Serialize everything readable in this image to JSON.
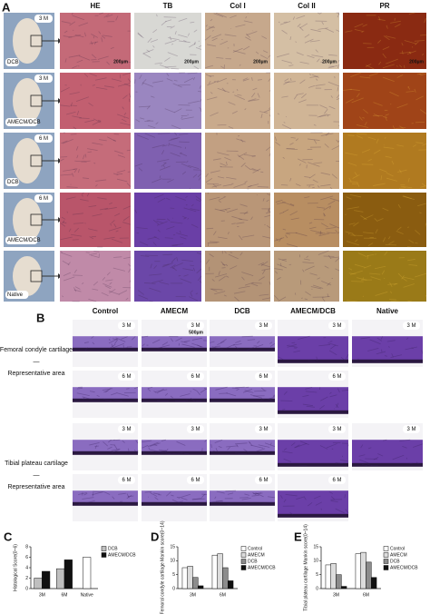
{
  "panel_a": {
    "label": "A",
    "columns": [
      "HE",
      "TB",
      "Col I",
      "Col II",
      "PR"
    ],
    "rows": [
      {
        "time": "3 M",
        "group": "DCB"
      },
      {
        "time": "3 M",
        "group": "AMECM/DCB"
      },
      {
        "time": "6 M",
        "group": "DCB"
      },
      {
        "time": "6 M",
        "group": "AMECM/DCB"
      },
      {
        "group": "Native"
      }
    ],
    "scale_bar": "200μm"
  },
  "panel_b": {
    "label": "B",
    "columns": [
      "Control",
      "AMECM",
      "DCB",
      "AMECM/DCB",
      "Native"
    ],
    "rows": [
      {
        "tag": "3 M"
      },
      {
        "tag": "6 M"
      },
      {
        "tag": "3 M"
      },
      {
        "tag": "6 M"
      }
    ],
    "region_labels": [
      {
        "title": "Femoral condyle cartilage",
        "dash": "—",
        "subtitle": "Representative area"
      },
      {
        "title": "Tibial plateau cartilage",
        "dash": "—",
        "subtitle": "Representative area"
      }
    ],
    "scale_bar": "500μm"
  },
  "chart_data": [
    {
      "type": "bar",
      "panel": "C",
      "y_label": "Histological Score(0~6)",
      "categories": [
        "3M",
        "6M",
        "Native"
      ],
      "series": [
        {
          "name": "DCB",
          "color": "#bfbfbf",
          "values": [
            2,
            3.8,
            null
          ]
        },
        {
          "name": "AMECM/DCB",
          "color": "#111111",
          "values": [
            3.3,
            5.5,
            null
          ]
        }
      ],
      "native_value": 6,
      "native_color": "#ffffff",
      "ylim": [
        0,
        8
      ],
      "yticks": [
        0,
        2,
        4,
        6,
        8
      ]
    },
    {
      "type": "bar",
      "panel": "D",
      "y_label": "Femoral condyle cartilage Mankin score(0~14)",
      "categories": [
        "3M",
        "6M"
      ],
      "series": [
        {
          "name": "Control",
          "color": "#ffffff",
          "values": [
            7.5,
            12
          ]
        },
        {
          "name": "AMECM",
          "color": "#dcdcdc",
          "values": [
            8,
            12.5
          ]
        },
        {
          "name": "DCB",
          "color": "#8c8c8c",
          "values": [
            4,
            7.5
          ]
        },
        {
          "name": "AMECM/DCB",
          "color": "#111111",
          "values": [
            1,
            2.8
          ]
        }
      ],
      "ylim": [
        0,
        15
      ],
      "yticks": [
        0,
        5,
        10,
        15
      ]
    },
    {
      "type": "bar",
      "panel": "E",
      "y_label": "Tibial plateau cartilage Mankin score(0~14)",
      "categories": [
        "3M",
        "6M"
      ],
      "series": [
        {
          "name": "Control",
          "color": "#ffffff",
          "values": [
            8.5,
            12.5
          ]
        },
        {
          "name": "AMECM",
          "color": "#dcdcdc",
          "values": [
            9,
            13
          ]
        },
        {
          "name": "DCB",
          "color": "#8c8c8c",
          "values": [
            5,
            9.5
          ]
        },
        {
          "name": "AMECM/DCB",
          "color": "#111111",
          "values": [
            0.8,
            4
          ]
        }
      ],
      "ylim": [
        0,
        15
      ],
      "yticks": [
        0,
        5,
        10,
        15
      ]
    }
  ]
}
